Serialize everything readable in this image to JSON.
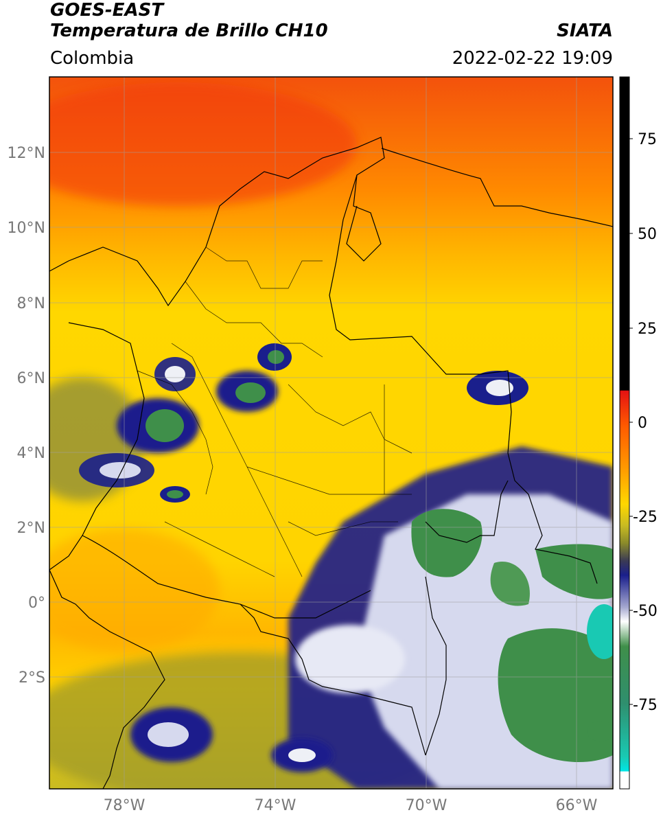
{
  "header": {
    "title_line1": "GOES-EAST",
    "title_line2": "Temperatura de Brillo CH10",
    "region": "Colombia",
    "organization": "SIATA",
    "datetime": "2022-02-22 19:09"
  },
  "map": {
    "lat_ticks": [
      {
        "value": 12,
        "label": "12°N"
      },
      {
        "value": 10,
        "label": "10°N"
      },
      {
        "value": 8,
        "label": "8°N"
      },
      {
        "value": 6,
        "label": "6°N"
      },
      {
        "value": 4,
        "label": "4°N"
      },
      {
        "value": 2,
        "label": "2°N"
      },
      {
        "value": 0,
        "label": "0°"
      },
      {
        "value": -2,
        "label": "2°S"
      }
    ],
    "lon_ticks": [
      {
        "value": -78,
        "label": "78°W"
      },
      {
        "value": -74,
        "label": "74°W"
      },
      {
        "value": -70,
        "label": "70°W"
      },
      {
        "value": -66,
        "label": "66°W"
      }
    ],
    "extent": {
      "lon_min": -79.8,
      "lon_max": -64.9,
      "lat_min": -5.0,
      "lat_max": 14.0
    }
  },
  "colorbar": {
    "ticks": [
      {
        "value": 75,
        "label": "75"
      },
      {
        "value": 50,
        "label": "50"
      },
      {
        "value": 25,
        "label": "25"
      },
      {
        "value": 0,
        "label": "0"
      },
      {
        "value": -25,
        "label": "-25"
      },
      {
        "value": -50,
        "label": "-50"
      },
      {
        "value": -75,
        "label": "-75"
      }
    ],
    "range": [
      -97,
      89
    ]
  },
  "colors": {
    "warm_top": "#f3520c",
    "orange": "#ff9a00",
    "yellow": "#ffd700",
    "olive": "#a9a326",
    "navy": "#1a1f8c",
    "white_cloud": "#eef0f6",
    "green_cloud": "#3f8f4a",
    "teal": "#19c9b3",
    "black": "#000000",
    "red": "#e51212"
  }
}
